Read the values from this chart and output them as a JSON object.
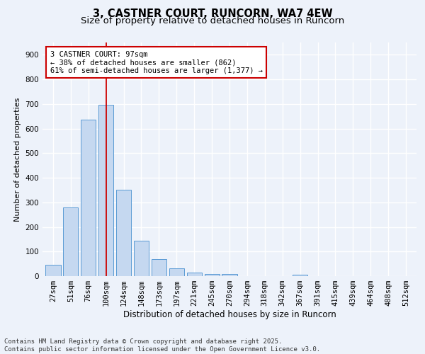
{
  "title": "3, CASTNER COURT, RUNCORN, WA7 4EW",
  "subtitle": "Size of property relative to detached houses in Runcorn",
  "xlabel": "Distribution of detached houses by size in Runcorn",
  "ylabel": "Number of detached properties",
  "categories": [
    "27sqm",
    "51sqm",
    "76sqm",
    "100sqm",
    "124sqm",
    "148sqm",
    "173sqm",
    "197sqm",
    "221sqm",
    "245sqm",
    "270sqm",
    "294sqm",
    "318sqm",
    "342sqm",
    "367sqm",
    "391sqm",
    "415sqm",
    "439sqm",
    "464sqm",
    "488sqm",
    "512sqm"
  ],
  "values": [
    45,
    280,
    635,
    698,
    350,
    145,
    68,
    32,
    15,
    10,
    8,
    0,
    0,
    0,
    5,
    0,
    0,
    0,
    0,
    0,
    0
  ],
  "bar_color": "#c5d8f0",
  "bar_edge_color": "#5b9bd5",
  "annotation_text": "3 CASTNER COURT: 97sqm\n← 38% of detached houses are smaller (862)\n61% of semi-detached houses are larger (1,377) →",
  "annotation_box_color": "#ffffff",
  "annotation_box_edge_color": "#cc0000",
  "vline_color": "#cc0000",
  "background_color": "#edf2fa",
  "grid_color": "#ffffff",
  "ylim": [
    0,
    950
  ],
  "yticks": [
    0,
    100,
    200,
    300,
    400,
    500,
    600,
    700,
    800,
    900
  ],
  "footer": "Contains HM Land Registry data © Crown copyright and database right 2025.\nContains public sector information licensed under the Open Government Licence v3.0.",
  "title_fontsize": 10.5,
  "subtitle_fontsize": 9.5,
  "xlabel_fontsize": 8.5,
  "ylabel_fontsize": 8,
  "tick_fontsize": 7.5,
  "annotation_fontsize": 7.5,
  "footer_fontsize": 6.5
}
